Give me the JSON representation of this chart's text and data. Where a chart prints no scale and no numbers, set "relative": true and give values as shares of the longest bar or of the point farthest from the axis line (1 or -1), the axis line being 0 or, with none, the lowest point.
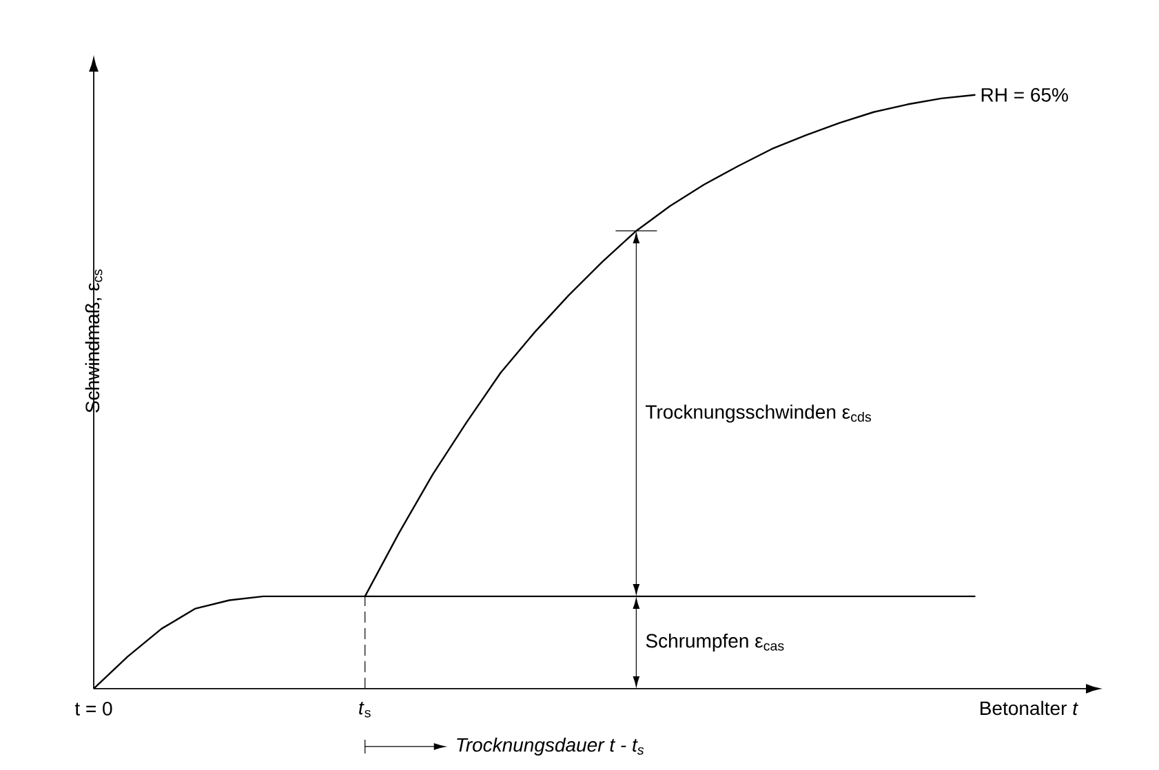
{
  "chart_data": {
    "type": "line",
    "relative": true,
    "xlabel": "Betonalter *t*",
    "ylabel": "Schwindmaß, ε$_{cs}$",
    "categories": [
      "t = 0",
      null,
      null,
      null,
      null,
      null,
      null,
      null,
      "*t*$_{s}$",
      null,
      null,
      null,
      null,
      null,
      null,
      null,
      null,
      null,
      null,
      null,
      null,
      null,
      null,
      null,
      null,
      null,
      null
    ],
    "series": [
      {
        "color": "#000000",
        "values": [
          0,
          0.054,
          0.101,
          0.135,
          0.149,
          0.1555,
          0.1555,
          0.1555,
          0.1555,
          0.1555,
          0.1555,
          0.1555,
          0.1555,
          0.1555,
          0.1555,
          0.1555,
          0.1555,
          0.1555,
          0.1555,
          0.1555,
          0.1555,
          0.1555,
          0.1555,
          0.1555,
          0.1555,
          0.1555,
          0.1555
        ]
      },
      {
        "name": "RH = 65%",
        "color": "#000000",
        "values": [
          null,
          null,
          null,
          null,
          null,
          null,
          null,
          null,
          0.1555,
          0.262,
          0.361,
          0.449,
          0.532,
          0.6,
          0.662,
          0.719,
          0.771,
          0.813,
          0.849,
          0.88,
          0.909,
          0.932,
          0.953,
          0.971,
          0.984,
          0.994,
          1.0
        ]
      }
    ],
    "ref_lines": [
      {
        "axis": "x",
        "value": "*t*$_{s}$",
        "line_style": "dashed"
      }
    ],
    "annotations": [
      "Trocknungsschwinden  ε$_{cds}$",
      "Schrumpfen ε$_{cas}$",
      "Trocknungsdauer t - t$_{s}$"
    ],
    "marker": "none",
    "line_style": "solid"
  }
}
